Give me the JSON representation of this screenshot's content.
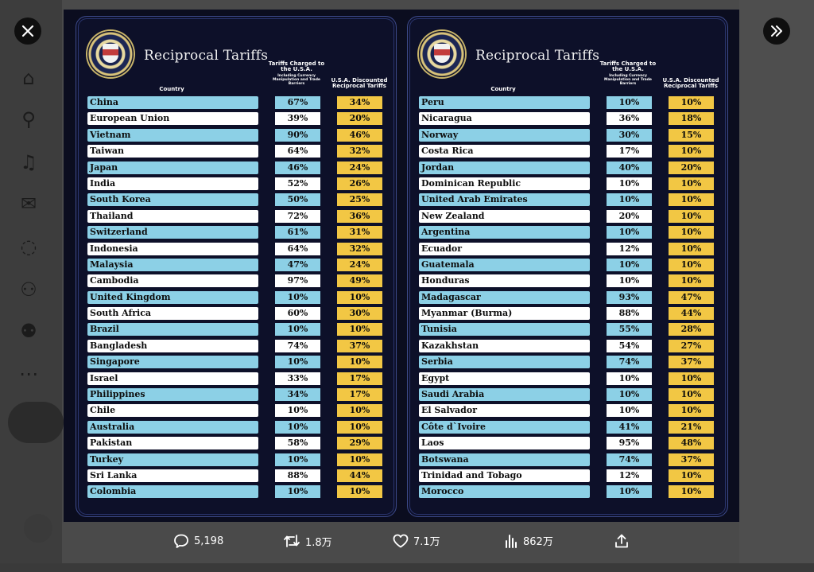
{
  "controls": {
    "close": "close",
    "expand": "expand"
  },
  "left_panel": {
    "title": "Reciprocal Tariffs",
    "headers": {
      "country": "Country",
      "charged": "Tariffs Charged to the U.S.A.",
      "charged_sub": "Including Currency Manipulation and Trade Barriers",
      "discounted": "U.S.A. Discounted Reciprocal Tariffs"
    },
    "rows": [
      [
        "China",
        "67%",
        "34%"
      ],
      [
        "European Union",
        "39%",
        "20%"
      ],
      [
        "Vietnam",
        "90%",
        "46%"
      ],
      [
        "Taiwan",
        "64%",
        "32%"
      ],
      [
        "Japan",
        "46%",
        "24%"
      ],
      [
        "India",
        "52%",
        "26%"
      ],
      [
        "South Korea",
        "50%",
        "25%"
      ],
      [
        "Thailand",
        "72%",
        "36%"
      ],
      [
        "Switzerland",
        "61%",
        "31%"
      ],
      [
        "Indonesia",
        "64%",
        "32%"
      ],
      [
        "Malaysia",
        "47%",
        "24%"
      ],
      [
        "Cambodia",
        "97%",
        "49%"
      ],
      [
        "United Kingdom",
        "10%",
        "10%"
      ],
      [
        "South Africa",
        "60%",
        "30%"
      ],
      [
        "Brazil",
        "10%",
        "10%"
      ],
      [
        "Bangladesh",
        "74%",
        "37%"
      ],
      [
        "Singapore",
        "10%",
        "10%"
      ],
      [
        "Israel",
        "33%",
        "17%"
      ],
      [
        "Philippines",
        "34%",
        "17%"
      ],
      [
        "Chile",
        "10%",
        "10%"
      ],
      [
        "Australia",
        "10%",
        "10%"
      ],
      [
        "Pakistan",
        "58%",
        "29%"
      ],
      [
        "Turkey",
        "10%",
        "10%"
      ],
      [
        "Sri Lanka",
        "88%",
        "44%"
      ],
      [
        "Colombia",
        "10%",
        "10%"
      ]
    ]
  },
  "right_panel": {
    "title": "Reciprocal Tariffs",
    "headers": {
      "country": "Country",
      "charged": "Tariffs Charged to the U.S.A.",
      "charged_sub": "Including Currency Manipulation and Trade Barriers",
      "discounted": "U.S.A. Discounted Reciprocal Tariffs"
    },
    "rows": [
      [
        "Peru",
        "10%",
        "10%"
      ],
      [
        "Nicaragua",
        "36%",
        "18%"
      ],
      [
        "Norway",
        "30%",
        "15%"
      ],
      [
        "Costa Rica",
        "17%",
        "10%"
      ],
      [
        "Jordan",
        "40%",
        "20%"
      ],
      [
        "Dominican Republic",
        "10%",
        "10%"
      ],
      [
        "United Arab Emirates",
        "10%",
        "10%"
      ],
      [
        "New Zealand",
        "20%",
        "10%"
      ],
      [
        "Argentina",
        "10%",
        "10%"
      ],
      [
        "Ecuador",
        "12%",
        "10%"
      ],
      [
        "Guatemala",
        "10%",
        "10%"
      ],
      [
        "Honduras",
        "10%",
        "10%"
      ],
      [
        "Madagascar",
        "93%",
        "47%"
      ],
      [
        "Myanmar (Burma)",
        "88%",
        "44%"
      ],
      [
        "Tunisia",
        "55%",
        "28%"
      ],
      [
        "Kazakhstan",
        "54%",
        "27%"
      ],
      [
        "Serbia",
        "74%",
        "37%"
      ],
      [
        "Egypt",
        "10%",
        "10%"
      ],
      [
        "Saudi Arabia",
        "10%",
        "10%"
      ],
      [
        "El Salvador",
        "10%",
        "10%"
      ],
      [
        "Côte d`Ivoire",
        "41%",
        "21%"
      ],
      [
        "Laos",
        "95%",
        "48%"
      ],
      [
        "Botswana",
        "74%",
        "37%"
      ],
      [
        "Trinidad and Tobago",
        "12%",
        "10%"
      ],
      [
        "Morocco",
        "10%",
        "10%"
      ]
    ]
  },
  "actions": {
    "reply": "5,198",
    "repost": "1.8万",
    "like": "7.1万",
    "views": "862万"
  },
  "colors": {
    "row_blue": "#8cd0e6",
    "row_white": "#ffffff",
    "gold": "#f2c744",
    "panel": "#0d1029"
  }
}
